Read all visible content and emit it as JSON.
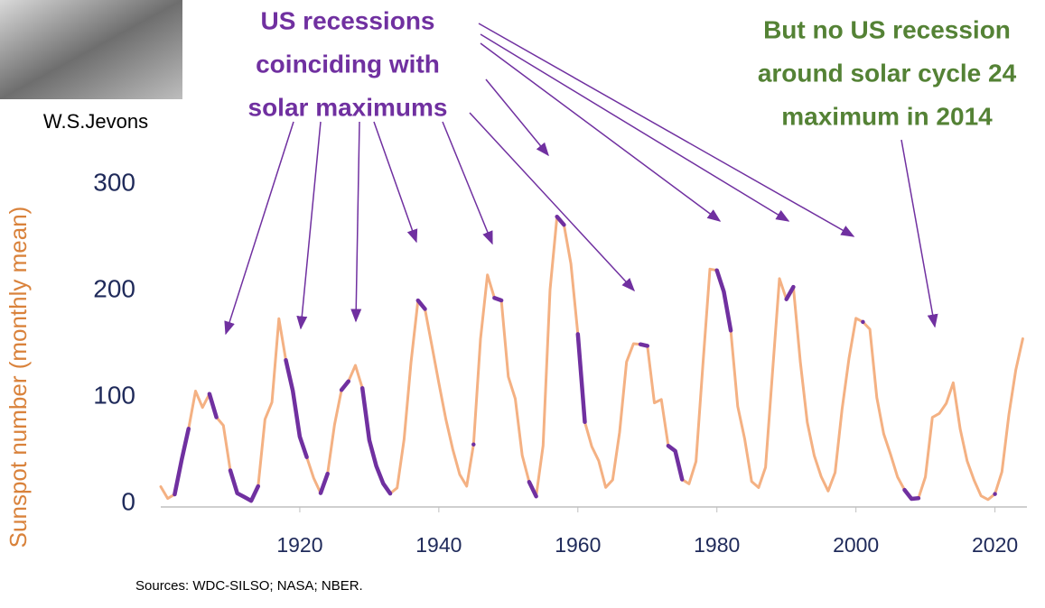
{
  "chart_data": {
    "type": "line",
    "portrait_caption": "W.S.Jevons",
    "annotation_recessions": {
      "lines": [
        "US recessions",
        "coinciding with",
        "solar maximums"
      ],
      "color": "#7030a0"
    },
    "annotation_no_recession": {
      "lines": [
        "But no US recession",
        "around solar cycle 24",
        "maximum in 2014"
      ],
      "color": "#548235"
    },
    "y_label": "Sunspot number (monthly mean)",
    "source": "Sources:  WDC-SILSO; NASA; NBER.",
    "x": [
      1900,
      1901,
      1902,
      1903,
      1904,
      1905,
      1906,
      1907,
      1908,
      1909,
      1910,
      1911,
      1912,
      1913,
      1914,
      1915,
      1916,
      1917,
      1918,
      1919,
      1920,
      1921,
      1922,
      1923,
      1924,
      1925,
      1926,
      1927,
      1928,
      1929,
      1930,
      1931,
      1932,
      1933,
      1934,
      1935,
      1936,
      1937,
      1938,
      1939,
      1940,
      1941,
      1942,
      1943,
      1944,
      1945,
      1946,
      1947,
      1948,
      1949,
      1950,
      1951,
      1952,
      1953,
      1954,
      1955,
      1956,
      1957,
      1958,
      1959,
      1960,
      1961,
      1962,
      1963,
      1964,
      1965,
      1966,
      1967,
      1968,
      1969,
      1970,
      1971,
      1972,
      1973,
      1974,
      1975,
      1976,
      1977,
      1978,
      1979,
      1980,
      1981,
      1982,
      1983,
      1984,
      1985,
      1986,
      1987,
      1988,
      1989,
      1990,
      1991,
      1992,
      1993,
      1994,
      1995,
      1996,
      1997,
      1998,
      1999,
      2000,
      2001,
      2002,
      2003,
      2004,
      2005,
      2006,
      2007,
      2008,
      2009,
      2010,
      2011,
      2012,
      2013,
      2014,
      2015,
      2016,
      2017,
      2018,
      2019,
      2020,
      2021,
      2022,
      2023,
      2024
    ],
    "series": [
      {
        "color": "#f4b183",
        "values": [
          15.7,
          4.6,
          8.5,
          40.8,
          70.1,
          105.5,
          90.1,
          102.8,
          80.9,
          73.2,
          30.9,
          9.5,
          6.0,
          2.4,
          16.1,
          79.0,
          95.0,
          173.6,
          134.6,
          105.7,
          62.7,
          43.5,
          23.7,
          9.7,
          27.9,
          74.0,
          106.5,
          114.7,
          129.7,
          108.2,
          59.4,
          35.1,
          18.6,
          9.2,
          14.6,
          60.2,
          132.8,
          190.6,
          182.6,
          148.0,
          113.0,
          79.2,
          50.8,
          27.1,
          16.1,
          55.3,
          154.3,
          214.7,
          193.0,
          190.7,
          118.9,
          98.3,
          45.0,
          20.1,
          6.6,
          54.2,
          200.7,
          269.3,
          261.7,
          225.1,
          159.0,
          76.4,
          53.4,
          39.9,
          15.0,
          22.0,
          66.8,
          132.9,
          150.0,
          149.4,
          148.0,
          94.4,
          97.6,
          54.1,
          49.2,
          22.5,
          18.4,
          39.3,
          131.0,
          220.1,
          218.9,
          198.9,
          162.4,
          91.0,
          60.5,
          20.6,
          14.8,
          33.9,
          123.0,
          211.1,
          191.8,
          203.3,
          133.0,
          76.1,
          44.9,
          25.1,
          11.6,
          28.9,
          88.3,
          136.3,
          173.9,
          170.4,
          163.6,
          99.3,
          65.3,
          45.8,
          24.7,
          12.6,
          4.2,
          4.8,
          24.9,
          80.8,
          84.5,
          94.0,
          113.3,
          69.8,
          39.8,
          21.7,
          7.0,
          3.6,
          8.8,
          29.6,
          83.2,
          125.5,
          154.7
        ]
      },
      {
        "color": "#7030a0",
        "values": [
          null,
          null,
          8.5,
          40.8,
          70.1,
          null,
          null,
          102.8,
          80.9,
          null,
          30.9,
          9.5,
          6.0,
          2.4,
          16.1,
          null,
          null,
          null,
          134.6,
          105.7,
          62.7,
          43.5,
          null,
          9.7,
          27.9,
          null,
          106.5,
          114.7,
          null,
          108.2,
          59.4,
          35.1,
          18.6,
          9.2,
          null,
          null,
          null,
          190.6,
          182.6,
          null,
          null,
          null,
          null,
          null,
          null,
          55.3,
          null,
          null,
          193.0,
          190.7,
          null,
          null,
          null,
          20.1,
          6.6,
          null,
          null,
          269.3,
          261.7,
          null,
          159.0,
          76.4,
          null,
          null,
          null,
          null,
          null,
          null,
          null,
          149.4,
          148.0,
          null,
          null,
          54.1,
          49.2,
          22.5,
          null,
          null,
          null,
          null,
          218.9,
          198.9,
          162.4,
          null,
          null,
          null,
          null,
          null,
          null,
          null,
          191.8,
          203.3,
          null,
          null,
          null,
          null,
          null,
          null,
          null,
          null,
          null,
          170.4,
          null,
          null,
          null,
          null,
          null,
          12.6,
          4.2,
          4.8,
          null,
          null,
          null,
          null,
          null,
          null,
          null,
          null,
          null,
          null,
          8.8,
          null,
          null,
          null,
          null
        ]
      }
    ],
    "xlim": [
      1900,
      2024.6
    ],
    "xticks": [
      1920,
      1940,
      1960,
      1980,
      2000,
      2020
    ],
    "ylim": [
      0,
      300
    ],
    "yticks": [
      0,
      100,
      200,
      300
    ]
  }
}
